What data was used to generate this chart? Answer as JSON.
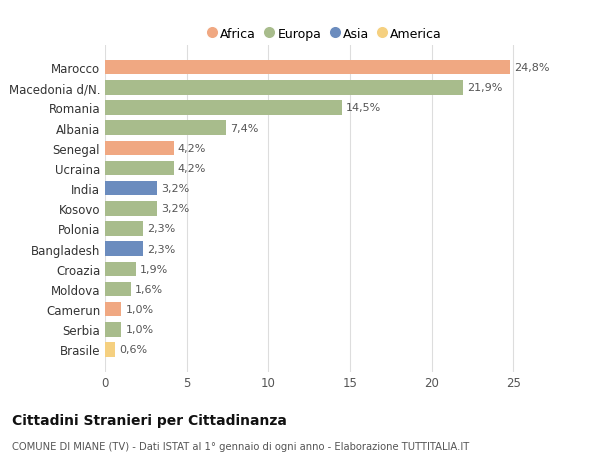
{
  "categories": [
    "Marocco",
    "Macedonia d/N.",
    "Romania",
    "Albania",
    "Senegal",
    "Ucraina",
    "India",
    "Kosovo",
    "Polonia",
    "Bangladesh",
    "Croazia",
    "Moldova",
    "Camerun",
    "Serbia",
    "Brasile"
  ],
  "values": [
    24.8,
    21.9,
    14.5,
    7.4,
    4.2,
    4.2,
    3.2,
    3.2,
    2.3,
    2.3,
    1.9,
    1.6,
    1.0,
    1.0,
    0.6
  ],
  "labels": [
    "24,8%",
    "21,9%",
    "14,5%",
    "7,4%",
    "4,2%",
    "4,2%",
    "3,2%",
    "3,2%",
    "2,3%",
    "2,3%",
    "1,9%",
    "1,6%",
    "1,0%",
    "1,0%",
    "0,6%"
  ],
  "continents": [
    "Africa",
    "Europa",
    "Europa",
    "Europa",
    "Africa",
    "Europa",
    "Asia",
    "Europa",
    "Europa",
    "Asia",
    "Europa",
    "Europa",
    "Africa",
    "Europa",
    "America"
  ],
  "colors": {
    "Africa": "#F0A882",
    "Europa": "#A8BC8C",
    "Asia": "#6B8CBE",
    "America": "#F5D080"
  },
  "legend_order": [
    "Africa",
    "Europa",
    "Asia",
    "America"
  ],
  "title": "Cittadini Stranieri per Cittadinanza",
  "subtitle": "COMUNE DI MIANE (TV) - Dati ISTAT al 1° gennaio di ogni anno - Elaborazione TUTTITALIA.IT",
  "xlim": [
    0,
    27
  ],
  "xticks": [
    0,
    5,
    10,
    15,
    20,
    25
  ],
  "background_color": "#ffffff",
  "grid_color": "#dddddd"
}
